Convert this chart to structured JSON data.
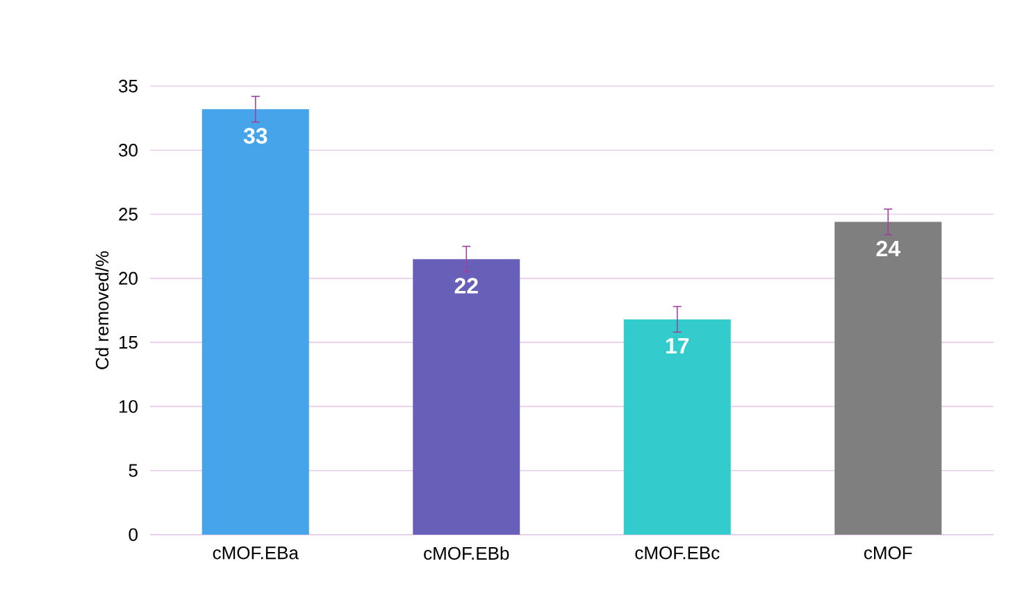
{
  "chart_data": {
    "type": "bar",
    "ylabel": "Cd removed/%",
    "categories": [
      "cMOF.EBa",
      "cMOF.EBb",
      "cMOF.EBc",
      "cMOF"
    ],
    "values": [
      33.2,
      21.5,
      16.8,
      24.4
    ],
    "colors": [
      "#46a5ea",
      "#675fb8",
      "#33cccc",
      "#7f7f7f"
    ],
    "errors": [
      1.0,
      1.0,
      1.0,
      1.0
    ],
    "value_labels": [
      "33",
      "22",
      "17",
      "24"
    ],
    "ylim": [
      0,
      35
    ],
    "yticks": [
      0,
      5,
      10,
      15,
      20,
      25,
      30,
      35
    ],
    "grid": "y"
  }
}
